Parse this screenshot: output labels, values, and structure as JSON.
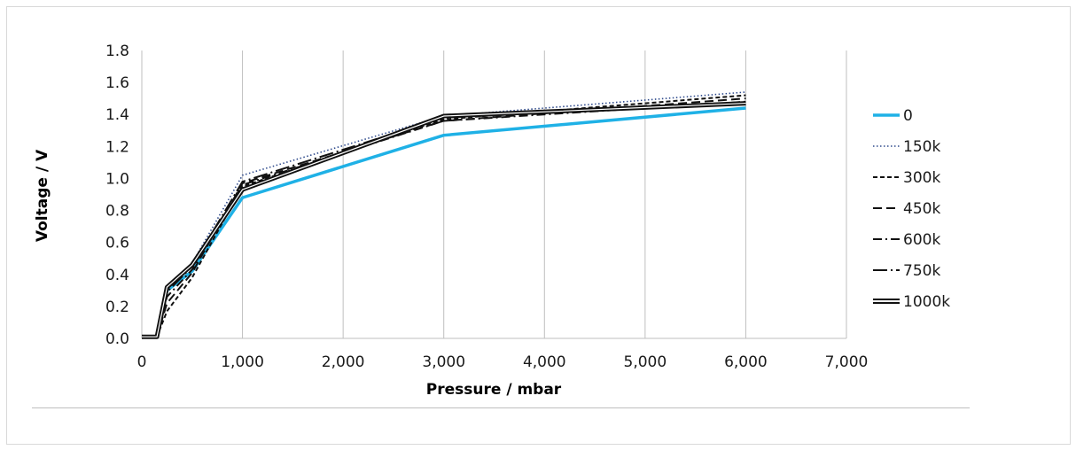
{
  "chart_data": {
    "type": "line",
    "xlabel": "Pressure / mbar",
    "ylabel": "Voltage / V",
    "xlim": [
      0,
      7000
    ],
    "ylim": [
      0,
      1.8
    ],
    "x_ticks": [
      "0",
      "1,000",
      "2,000",
      "3,000",
      "4,000",
      "5,000",
      "6,000",
      "7,000"
    ],
    "y_ticks": [
      "0.0",
      "0.2",
      "0.4",
      "0.6",
      "0.8",
      "1.0",
      "1.2",
      "1.4",
      "1.6",
      "1.8"
    ],
    "grid": "vertical",
    "legend_position": "right",
    "x": [
      0,
      150,
      250,
      500,
      1000,
      3000,
      6000
    ],
    "series": [
      {
        "name": "0",
        "values": [
          0.01,
          0.01,
          0.3,
          0.42,
          0.88,
          1.27,
          1.44
        ],
        "color": "#1fb1e6",
        "style": "solid-thick"
      },
      {
        "name": "150k",
        "values": [
          0.01,
          0.01,
          0.33,
          0.47,
          1.02,
          1.39,
          1.54
        ],
        "color": "#2e4a8c",
        "style": "dotted"
      },
      {
        "name": "300k",
        "values": [
          0.01,
          0.01,
          0.17,
          0.38,
          0.95,
          1.37,
          1.52
        ],
        "color": "#111111",
        "style": "short-dash"
      },
      {
        "name": "450k",
        "values": [
          0.01,
          0.01,
          0.22,
          0.41,
          0.97,
          1.36,
          1.5
        ],
        "color": "#111111",
        "style": "long-dash"
      },
      {
        "name": "600k",
        "values": [
          0.01,
          0.01,
          0.26,
          0.43,
          0.96,
          1.36,
          1.48
        ],
        "color": "#111111",
        "style": "dash-dot"
      },
      {
        "name": "750k",
        "values": [
          0.01,
          0.01,
          0.29,
          0.45,
          0.98,
          1.38,
          1.47
        ],
        "color": "#111111",
        "style": "long-dash-dot"
      },
      {
        "name": "1000k",
        "values": [
          0.01,
          0.01,
          0.32,
          0.46,
          0.93,
          1.39,
          1.47
        ],
        "color": "#111111",
        "style": "double"
      }
    ]
  }
}
